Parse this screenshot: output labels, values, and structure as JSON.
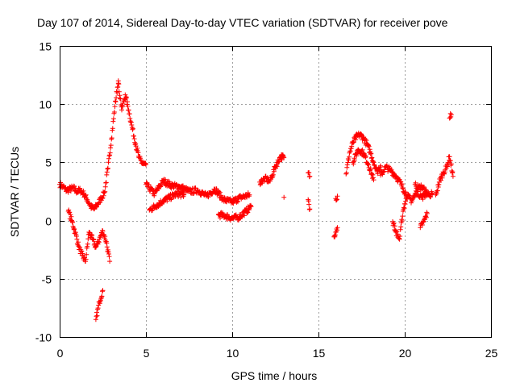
{
  "chart_data": {
    "type": "scatter",
    "title": "Day 107 of 2014, Sidereal Day-to-day VTEC variation (SDTVAR) for receiver pove",
    "xlabel": "GPS time / hours",
    "ylabel": "SDTVAR / TECUs",
    "xlim": [
      0,
      25
    ],
    "ylim": [
      -10,
      15
    ],
    "x_ticks": [
      0,
      5,
      10,
      15,
      20,
      25
    ],
    "y_ticks": [
      -10,
      -5,
      0,
      5,
      10,
      15
    ],
    "x_tick_labels": [
      "0",
      "5",
      "10",
      "15",
      "20",
      "25"
    ],
    "y_tick_labels": [
      "-10",
      "-5",
      "0",
      "5",
      "10",
      "15"
    ],
    "grid": true,
    "marker": "+",
    "color": "#ff0000",
    "series": [
      {
        "name": "SDTVAR",
        "segments": [
          {
            "x": [
              0.0,
              0.2,
              0.4,
              0.6,
              0.8,
              1.0,
              1.2,
              1.4,
              1.6,
              1.8,
              2.0,
              2.2,
              2.4,
              2.6,
              2.8,
              3.0,
              3.2,
              3.4
            ],
            "y": [
              3.1,
              2.9,
              2.6,
              2.7,
              2.8,
              2.5,
              2.6,
              2.3,
              1.8,
              1.2,
              1.0,
              1.4,
              1.9,
              2.4,
              4.5,
              7.0,
              9.8,
              12.0
            ]
          },
          {
            "x": [
              0.5,
              0.7,
              0.9,
              1.1,
              1.3,
              1.5,
              1.7,
              1.9,
              2.1,
              2.3,
              2.5,
              2.7,
              2.9
            ],
            "y": [
              0.8,
              0.0,
              -1.0,
              -2.2,
              -3.0,
              -3.5,
              -1.0,
              -1.6,
              -2.3,
              -1.6,
              -0.9,
              -1.8,
              -3.5
            ]
          },
          {
            "x": [
              2.1,
              2.3,
              2.5
            ],
            "y": [
              -8.5,
              -7.0,
              -6.0
            ]
          },
          {
            "x": [
              3.4,
              3.6,
              3.8,
              4.0,
              4.2,
              4.4,
              4.6,
              4.8,
              5.0
            ],
            "y": [
              11.8,
              9.5,
              10.8,
              9.5,
              8.0,
              6.6,
              5.4,
              4.9,
              4.8
            ]
          },
          {
            "x": [
              5.0,
              5.5,
              6.0,
              6.5,
              7.0,
              7.5,
              8.0,
              8.5,
              9.0,
              9.5,
              10.0,
              10.5,
              11.0
            ],
            "y": [
              3.1,
              2.3,
              3.4,
              3.0,
              2.9,
              2.5,
              2.6,
              2.1,
              2.7,
              1.8,
              1.6,
              2.0,
              2.2
            ]
          },
          {
            "x": [
              5.2,
              5.6,
              6.0,
              6.4,
              6.8,
              7.2
            ],
            "y": [
              0.9,
              1.3,
              1.7,
              2.0,
              2.3,
              2.2
            ]
          },
          {
            "x": [
              9.2,
              9.6,
              10.0,
              10.4,
              10.8,
              11.1
            ],
            "y": [
              0.5,
              0.4,
              0.2,
              0.3,
              0.8,
              1.2
            ]
          },
          {
            "x": [
              11.6,
              11.9,
              12.2,
              12.5,
              12.8,
              13.0
            ],
            "y": [
              3.3,
              3.6,
              3.4,
              4.6,
              5.5,
              5.4
            ]
          },
          {
            "x": [
              13.0
            ],
            "y": [
              2.0
            ]
          },
          {
            "x": [
              14.4,
              14.5
            ],
            "y": [
              4.1,
              3.8
            ]
          },
          {
            "x": [
              14.4,
              14.5
            ],
            "y": [
              1.8,
              1.0
            ]
          },
          {
            "x": [
              16.0,
              16.1
            ],
            "y": [
              1.9,
              2.1
            ]
          },
          {
            "x": [
              15.9,
              16.0,
              16.1
            ],
            "y": [
              -1.4,
              -1.0,
              -0.6
            ]
          },
          {
            "x": [
              16.6,
              16.8,
              17.0,
              17.2,
              17.4,
              17.6,
              17.8,
              18.0,
              18.2,
              18.4,
              18.6
            ],
            "y": [
              4.0,
              5.8,
              6.7,
              7.2,
              7.4,
              7.1,
              6.6,
              5.9,
              5.0,
              4.2,
              4.7
            ]
          },
          {
            "x": [
              17.0,
              17.3,
              17.6,
              17.9,
              18.2
            ],
            "y": [
              5.0,
              6.1,
              5.8,
              4.8,
              3.5
            ]
          },
          {
            "x": [
              18.6,
              18.9,
              19.2,
              19.5,
              19.8,
              20.1,
              20.4,
              20.7,
              21.0,
              21.3
            ],
            "y": [
              3.9,
              4.6,
              4.3,
              3.8,
              3.1,
              2.2,
              1.7,
              2.5,
              2.0,
              2.4
            ]
          },
          {
            "x": [
              19.3,
              19.5,
              19.7,
              19.9,
              20.1
            ],
            "y": [
              -0.1,
              -1.0,
              -1.6,
              0.8,
              2.0
            ]
          },
          {
            "x": [
              20.6,
              20.8,
              21.0,
              21.2,
              21.4,
              21.6
            ],
            "y": [
              3.1,
              2.8,
              2.9,
              2.5,
              2.2,
              2.3
            ]
          },
          {
            "x": [
              20.9,
              21.1,
              21.3
            ],
            "y": [
              -0.6,
              -0.1,
              0.6
            ]
          },
          {
            "x": [
              21.8,
              22.0,
              22.2,
              22.4,
              22.6,
              22.8
            ],
            "y": [
              2.2,
              3.3,
              4.0,
              4.5,
              5.5,
              3.8
            ]
          },
          {
            "x": [
              22.6,
              22.7
            ],
            "y": [
              8.8,
              9.1
            ]
          }
        ]
      }
    ]
  }
}
